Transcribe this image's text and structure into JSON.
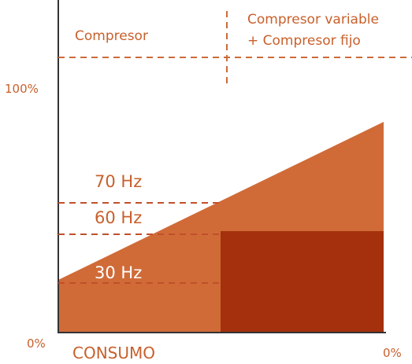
{
  "header": {
    "left_label": "Compresor",
    "right_label_line1": "Compresor variable",
    "right_label_line2": "+ Compresor fijo"
  },
  "y_axis": {
    "top_label": "100%",
    "bottom_label": "0%"
  },
  "x_axis": {
    "left_label": "CONSUMO",
    "right_label": "0%"
  },
  "frequency_markers": [
    {
      "label": "70 Hz"
    },
    {
      "label": "60 Hz"
    },
    {
      "label": "30 Hz"
    }
  ],
  "colors": {
    "text": "#c8602c",
    "dashed": "#cc6a3a",
    "triangle": "#d06b38",
    "block": "#a4300d",
    "axis": "#333333",
    "label_white": "#ffffff"
  }
}
